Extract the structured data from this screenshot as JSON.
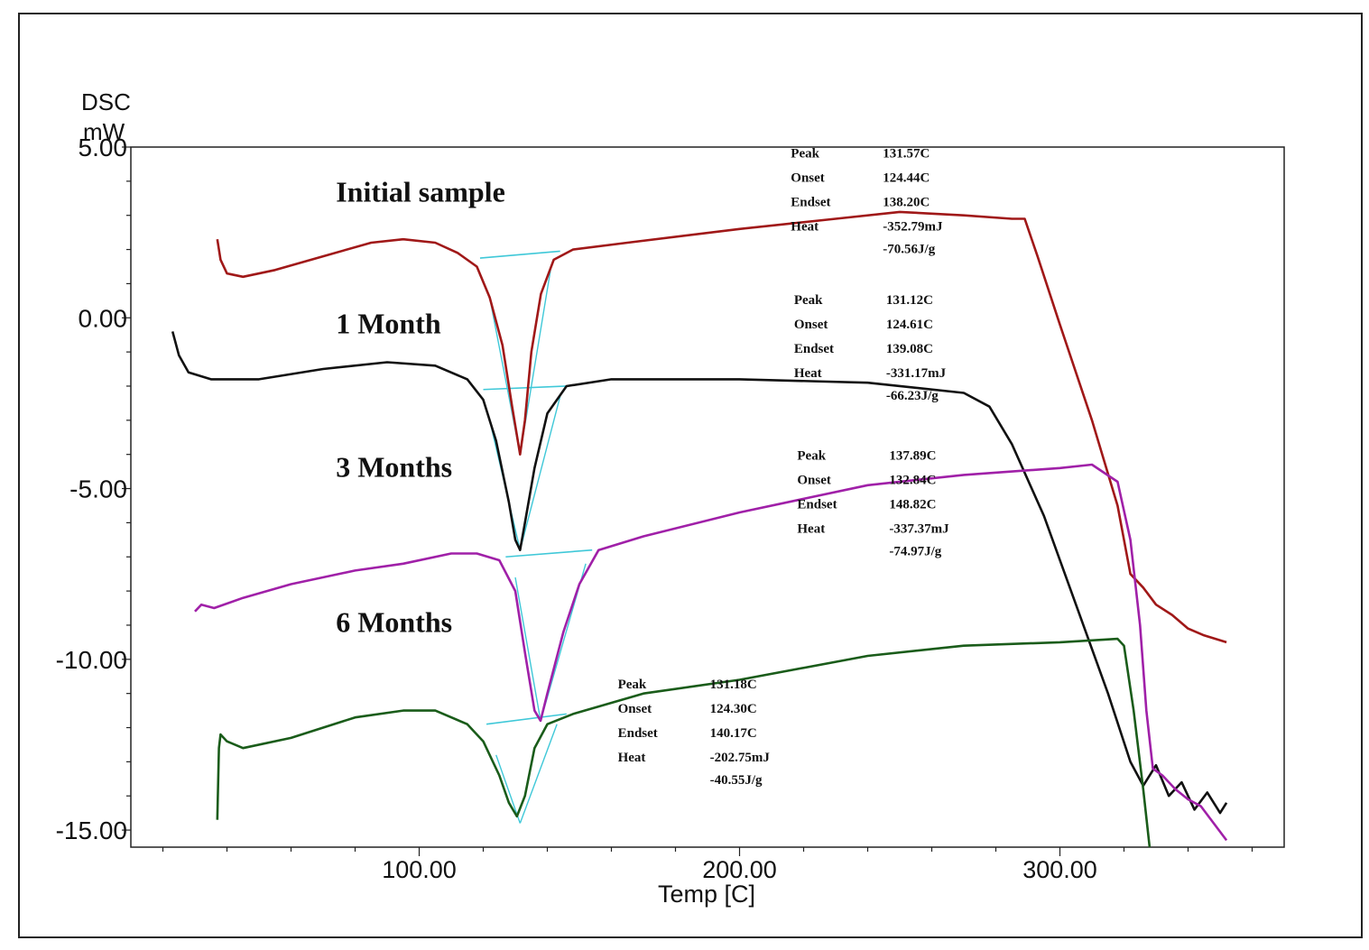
{
  "chart_data": {
    "type": "line",
    "ylabel_lines": [
      "DSC",
      "mW"
    ],
    "xlabel": "Temp  [C]",
    "xlim": [
      10,
      370
    ],
    "ylim": [
      -15.5,
      5.0
    ],
    "x_ticks": [
      {
        "value": 100,
        "label": "100.00"
      },
      {
        "value": 200,
        "label": "200.00"
      },
      {
        "value": 300,
        "label": "300.00"
      }
    ],
    "y_ticks": [
      {
        "value": 5,
        "label": "5.00"
      },
      {
        "value": 0,
        "label": "0.00"
      },
      {
        "value": -5,
        "label": "-5.00"
      },
      {
        "value": -10,
        "label": "-10.00"
      },
      {
        "value": -15,
        "label": "-15.00"
      }
    ],
    "grid": false,
    "series": [
      {
        "name": "Initial sample",
        "color": "#a01818",
        "label_pos": [
          74,
          3.4
        ],
        "points": [
          [
            37,
            2.3
          ],
          [
            38,
            1.7
          ],
          [
            40,
            1.3
          ],
          [
            45,
            1.2
          ],
          [
            55,
            1.4
          ],
          [
            70,
            1.8
          ],
          [
            85,
            2.2
          ],
          [
            95,
            2.3
          ],
          [
            105,
            2.2
          ],
          [
            112,
            1.9
          ],
          [
            118,
            1.5
          ],
          [
            122,
            0.6
          ],
          [
            126,
            -0.8
          ],
          [
            129,
            -2.6
          ],
          [
            131.5,
            -4.0
          ],
          [
            133,
            -3.0
          ],
          [
            135,
            -1.0
          ],
          [
            138,
            0.7
          ],
          [
            142,
            1.7
          ],
          [
            148,
            2.0
          ],
          [
            165,
            2.2
          ],
          [
            200,
            2.6
          ],
          [
            230,
            2.9
          ],
          [
            250,
            3.1
          ],
          [
            270,
            3.0
          ],
          [
            285,
            2.9
          ],
          [
            289,
            2.9
          ],
          [
            293,
            1.8
          ],
          [
            300,
            -0.2
          ],
          [
            310,
            -3.0
          ],
          [
            318,
            -5.5
          ],
          [
            322,
            -7.5
          ],
          [
            326,
            -7.9
          ],
          [
            330,
            -8.4
          ],
          [
            335,
            -8.7
          ],
          [
            340,
            -9.1
          ],
          [
            345,
            -9.3
          ],
          [
            352,
            -9.5
          ]
        ]
      },
      {
        "name": "1 Month",
        "color": "#111111",
        "label_pos": [
          74,
          -0.45
        ],
        "points": [
          [
            23,
            -0.4
          ],
          [
            25,
            -1.1
          ],
          [
            28,
            -1.6
          ],
          [
            35,
            -1.8
          ],
          [
            50,
            -1.8
          ],
          [
            70,
            -1.5
          ],
          [
            90,
            -1.3
          ],
          [
            105,
            -1.4
          ],
          [
            115,
            -1.8
          ],
          [
            120,
            -2.4
          ],
          [
            124,
            -3.6
          ],
          [
            128,
            -5.4
          ],
          [
            130,
            -6.5
          ],
          [
            131.5,
            -6.8
          ],
          [
            133,
            -6.0
          ],
          [
            136,
            -4.4
          ],
          [
            140,
            -2.8
          ],
          [
            146,
            -2.0
          ],
          [
            160,
            -1.8
          ],
          [
            200,
            -1.8
          ],
          [
            240,
            -1.9
          ],
          [
            270,
            -2.2
          ],
          [
            278,
            -2.6
          ],
          [
            285,
            -3.7
          ],
          [
            295,
            -5.8
          ],
          [
            305,
            -8.4
          ],
          [
            315,
            -11.0
          ],
          [
            322,
            -13.0
          ],
          [
            326,
            -13.7
          ],
          [
            330,
            -13.1
          ],
          [
            334,
            -14.0
          ],
          [
            338,
            -13.6
          ],
          [
            342,
            -14.4
          ],
          [
            346,
            -13.9
          ],
          [
            350,
            -14.5
          ],
          [
            352,
            -14.2
          ]
        ]
      },
      {
        "name": "3 Months",
        "color": "#a020a8",
        "label_pos": [
          74,
          -4.65
        ],
        "points": [
          [
            30,
            -8.6
          ],
          [
            32,
            -8.4
          ],
          [
            36,
            -8.5
          ],
          [
            45,
            -8.2
          ],
          [
            60,
            -7.8
          ],
          [
            80,
            -7.4
          ],
          [
            95,
            -7.2
          ],
          [
            110,
            -6.9
          ],
          [
            118,
            -6.9
          ],
          [
            125,
            -7.1
          ],
          [
            130,
            -8.0
          ],
          [
            133,
            -9.8
          ],
          [
            136,
            -11.5
          ],
          [
            137.9,
            -11.8
          ],
          [
            140,
            -11.0
          ],
          [
            145,
            -9.2
          ],
          [
            150,
            -7.8
          ],
          [
            156,
            -6.8
          ],
          [
            170,
            -6.4
          ],
          [
            200,
            -5.7
          ],
          [
            240,
            -4.9
          ],
          [
            270,
            -4.6
          ],
          [
            300,
            -4.4
          ],
          [
            310,
            -4.3
          ],
          [
            318,
            -4.8
          ],
          [
            322,
            -6.5
          ],
          [
            325,
            -9.0
          ],
          [
            327,
            -11.5
          ],
          [
            329,
            -13.2
          ],
          [
            332,
            -13.4
          ],
          [
            336,
            -13.8
          ],
          [
            340,
            -14.1
          ],
          [
            344,
            -14.3
          ],
          [
            348,
            -14.8
          ],
          [
            352,
            -15.3
          ]
        ]
      },
      {
        "name": "6 Months",
        "color": "#1a5c1a",
        "label_pos": [
          74,
          -9.2
        ],
        "points": [
          [
            37,
            -14.7
          ],
          [
            37.5,
            -12.6
          ],
          [
            38,
            -12.2
          ],
          [
            40,
            -12.4
          ],
          [
            45,
            -12.6
          ],
          [
            60,
            -12.3
          ],
          [
            80,
            -11.7
          ],
          [
            95,
            -11.5
          ],
          [
            105,
            -11.5
          ],
          [
            115,
            -11.9
          ],
          [
            120,
            -12.4
          ],
          [
            125,
            -13.4
          ],
          [
            128,
            -14.2
          ],
          [
            130.5,
            -14.6
          ],
          [
            133,
            -14.0
          ],
          [
            136,
            -12.6
          ],
          [
            140,
            -11.9
          ],
          [
            148,
            -11.6
          ],
          [
            170,
            -11.0
          ],
          [
            200,
            -10.6
          ],
          [
            240,
            -9.9
          ],
          [
            270,
            -9.6
          ],
          [
            300,
            -9.5
          ],
          [
            318,
            -9.4
          ],
          [
            320,
            -9.6
          ],
          [
            323,
            -11.5
          ],
          [
            326,
            -13.8
          ],
          [
            328,
            -15.5
          ]
        ]
      }
    ],
    "annotations": [
      {
        "pos": [
          216,
          4.7
        ],
        "rows": [
          [
            "Peak",
            "131.57C"
          ],
          [
            "Onset",
            "124.44C"
          ],
          [
            "Endset",
            "138.20C"
          ],
          [
            "Heat",
            "-352.79mJ"
          ],
          [
            "",
            "-70.56J/g"
          ]
        ]
      },
      {
        "pos": [
          217,
          0.4
        ],
        "rows": [
          [
            "Peak",
            "131.12C"
          ],
          [
            "Onset",
            "124.61C"
          ],
          [
            "Endset",
            "139.08C"
          ],
          [
            "Heat",
            "-331.17mJ"
          ],
          [
            "",
            "-66.23J/g"
          ]
        ]
      },
      {
        "pos": [
          218,
          -4.15
        ],
        "rows": [
          [
            "Peak",
            "137.89C"
          ],
          [
            "Onset",
            "132.84C"
          ],
          [
            "Endset",
            "148.82C"
          ],
          [
            "Heat",
            "-337.37mJ"
          ],
          [
            "",
            "-74.97J/g"
          ]
        ]
      },
      {
        "pos": [
          162,
          -10.85
        ],
        "rows": [
          [
            "Peak",
            "131.18C"
          ],
          [
            "Onset",
            "124.30C"
          ],
          [
            "Endset",
            "140.17C"
          ],
          [
            "Heat",
            "-202.75mJ"
          ],
          [
            "",
            "-40.55J/g"
          ]
        ]
      }
    ],
    "baselines": [
      {
        "color": "#3fc8d8",
        "from": [
          119,
          1.75
        ],
        "to": [
          144,
          1.95
        ],
        "tan1": [
          [
            122,
            0.6
          ],
          [
            131.5,
            -4.0
          ]
        ],
        "tan2": [
          [
            131.5,
            -4.0
          ],
          [
            141,
            1.4
          ]
        ]
      },
      {
        "color": "#3fc8d8",
        "from": [
          120,
          -2.1
        ],
        "to": [
          146,
          -2.0
        ],
        "tan1": [
          [
            122,
            -3.0
          ],
          [
            131.5,
            -6.8
          ]
        ],
        "tan2": [
          [
            131.5,
            -6.8
          ],
          [
            144,
            -2.3
          ]
        ]
      },
      {
        "color": "#3fc8d8",
        "from": [
          127,
          -7.0
        ],
        "to": [
          154,
          -6.8
        ],
        "tan1": [
          [
            130,
            -7.6
          ],
          [
            137.9,
            -11.8
          ]
        ],
        "tan2": [
          [
            137.9,
            -11.8
          ],
          [
            152,
            -7.2
          ]
        ]
      },
      {
        "color": "#3fc8d8",
        "from": [
          121,
          -11.9
        ],
        "to": [
          146,
          -11.6
        ],
        "tan1": [
          [
            124,
            -12.8
          ],
          [
            131.5,
            -14.8
          ]
        ],
        "tan2": [
          [
            131.5,
            -14.8
          ],
          [
            143,
            -11.9
          ]
        ]
      }
    ]
  }
}
